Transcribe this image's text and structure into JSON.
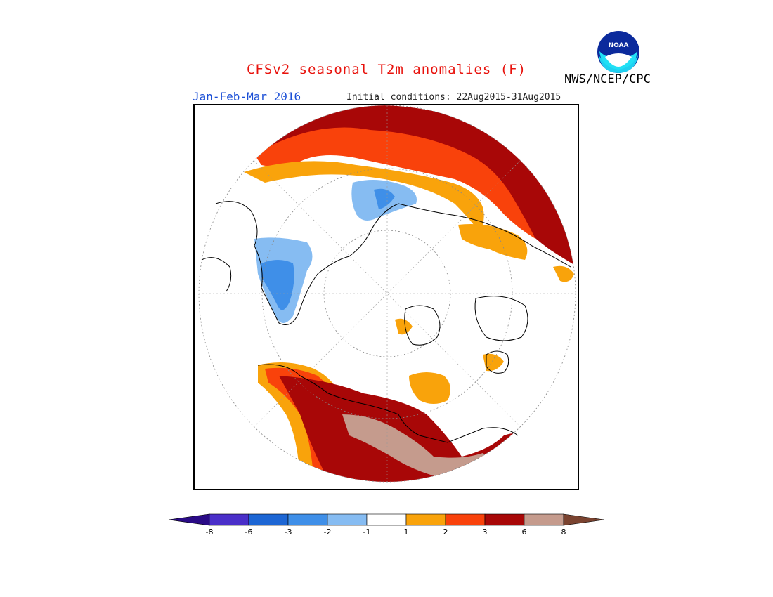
{
  "header": {
    "title": "CFSv2 seasonal T2m anomalies (F)",
    "season": "Jan-Feb-Mar 2016",
    "initial_conditions": "Initial conditions: 22Aug2015-31Aug2015",
    "agency": "NWS/NCEP/CPC",
    "logo_text": "NOAA"
  },
  "colors": {
    "title": "#e8120c",
    "season": "#1b4fd6",
    "lt_minus8": "#2a0b86",
    "minus8_minus6": "#4a2fc9",
    "minus6_minus3": "#1d66d4",
    "minus3_minus2": "#3f8fe8",
    "minus2_minus1": "#86bcf2",
    "minus1_1": "#ffffff",
    "1_2": "#f9a30b",
    "2_3": "#f9420b",
    "3_6": "#a80707",
    "6_8": "#c59b8d",
    "gt_8": "#7a4330"
  },
  "legend": {
    "ticks": [
      "-8",
      "-6",
      "-3",
      "-2",
      "-1",
      "1",
      "2",
      "3",
      "6",
      "8"
    ],
    "bins": [
      {
        "range": "< -8",
        "color": "#2a0b86"
      },
      {
        "range": "-8 to -6",
        "color": "#4a2fc9"
      },
      {
        "range": "-6 to -3",
        "color": "#1d66d4"
      },
      {
        "range": "-3 to -2",
        "color": "#3f8fe8"
      },
      {
        "range": "-2 to -1",
        "color": "#86bcf2"
      },
      {
        "range": "-1 to 1",
        "color": "#ffffff"
      },
      {
        "range": "1 to 2",
        "color": "#f9a30b"
      },
      {
        "range": "2 to 3",
        "color": "#f9420b"
      },
      {
        "range": "3 to 6",
        "color": "#a80707"
      },
      {
        "range": "6 to 8",
        "color": "#c59b8d"
      },
      {
        "range": "> 8",
        "color": "#7a4330"
      }
    ]
  },
  "map": {
    "projection": "polar stereographic, north pole",
    "features": [
      {
        "region": "Northern Asia arc",
        "category": "3 to 6"
      },
      {
        "region": "Central Asia band",
        "category": "1 to 2"
      },
      {
        "region": "Europe",
        "category": "-2 to -1"
      },
      {
        "region": "Alaska/East Siberia",
        "category": "3 to 6"
      },
      {
        "region": "Canada",
        "category": "6 to 8"
      },
      {
        "region": "Western North America coast",
        "category": "2 to 3"
      }
    ]
  }
}
